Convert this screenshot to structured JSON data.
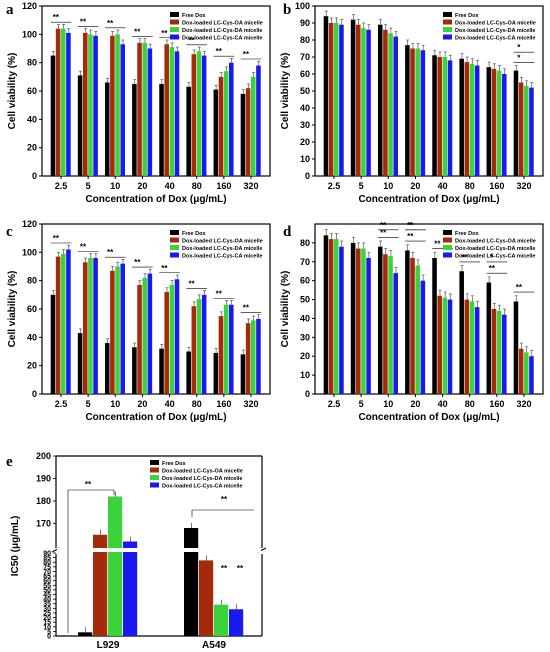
{
  "figure": {
    "background": "#ffffff"
  },
  "series_colors": [
    "#000000",
    "#a52a0a",
    "#3cd23c",
    "#1a1aee"
  ],
  "chart_data": [
    {
      "panel": "a",
      "type": "bar",
      "categories": [
        "2.5",
        "5",
        "10",
        "20",
        "40",
        "80",
        "160",
        "320"
      ],
      "xlabel": "Concentration of Dox (μg/mL)",
      "ylabel": "Cell viability (%)",
      "ylim": [
        0,
        120
      ],
      "yticks": [
        0,
        20,
        40,
        60,
        80,
        100,
        120
      ],
      "legend_position": "top-right",
      "series": [
        {
          "name": "Free Dox",
          "values": [
            85,
            71,
            66,
            65,
            65,
            63,
            61,
            58
          ]
        },
        {
          "name": "Dox-loaded LC-Cys-OA micelle",
          "values": [
            104,
            101,
            99,
            94,
            93,
            86,
            70,
            62
          ]
        },
        {
          "name": "Dox-loaded LC-Cys-DA micelle",
          "values": [
            104,
            100,
            100,
            94,
            91,
            88,
            74,
            70
          ]
        },
        {
          "name": "Dox-loaded LC-Cys-CA micelle",
          "values": [
            101,
            99,
            93,
            90,
            88,
            85,
            80,
            78
          ]
        }
      ],
      "significance": [
        {
          "category": "2.5",
          "label": "**"
        },
        {
          "category": "5",
          "label": "**"
        },
        {
          "category": "10",
          "label": "**"
        },
        {
          "category": "20",
          "label": "**"
        },
        {
          "category": "40",
          "label": "**"
        },
        {
          "category": "80",
          "label": "**"
        },
        {
          "category": "160",
          "label": "**"
        },
        {
          "category": "320",
          "label": "**"
        }
      ]
    },
    {
      "panel": "b",
      "type": "bar",
      "categories": [
        "2.5",
        "5",
        "10",
        "20",
        "40",
        "80",
        "160",
        "320"
      ],
      "xlabel": "Concentration of Dox (μg/mL)",
      "ylabel": "Cell viability (%)",
      "ylim": [
        0,
        100
      ],
      "yticks": [
        0,
        10,
        20,
        30,
        40,
        50,
        60,
        70,
        80,
        90,
        100
      ],
      "legend_position": "top-right",
      "series": [
        {
          "name": "Free Dox",
          "values": [
            94,
            92,
            89,
            77,
            71,
            69,
            64,
            62
          ]
        },
        {
          "name": "Dox-loaded LC-Cys-OA micelle",
          "values": [
            90,
            89,
            86,
            75,
            70,
            67,
            63,
            55
          ]
        },
        {
          "name": "Dox-loaded LC-Cys-DA micelle",
          "values": [
            90,
            87,
            84,
            75,
            70,
            66,
            62,
            53
          ]
        },
        {
          "name": "Dox-loaded LC-Cys-CA micelle",
          "values": [
            89,
            86,
            82,
            74,
            68,
            65,
            60,
            52
          ]
        }
      ],
      "significance": [
        {
          "category": "320",
          "label": "*"
        },
        {
          "category": "320",
          "label": "*"
        }
      ]
    },
    {
      "panel": "c",
      "type": "bar",
      "categories": [
        "2.5",
        "5",
        "10",
        "20",
        "40",
        "80",
        "160",
        "320"
      ],
      "xlabel": "Concentration of Dox (μg/mL)",
      "ylabel": "Cell viability (%)",
      "ylim": [
        0,
        120
      ],
      "yticks": [
        0,
        20,
        40,
        60,
        80,
        100,
        120
      ],
      "legend_position": "top-right",
      "series": [
        {
          "name": "Free Dox",
          "values": [
            70,
            43,
            36,
            33,
            32,
            30,
            29,
            28
          ]
        },
        {
          "name": "Dox-loaded LC-Cys-OA micelle",
          "values": [
            97,
            93,
            87,
            77,
            72,
            62,
            55,
            50
          ]
        },
        {
          "name": "Dox-loaded LC-Cys-DA micelle",
          "values": [
            99,
            96,
            90,
            82,
            77,
            67,
            63,
            52
          ]
        },
        {
          "name": "Dox-loaded LC-Cys-CA micelle",
          "values": [
            102,
            96,
            92,
            85,
            81,
            70,
            63,
            53
          ]
        }
      ],
      "significance": [
        {
          "category": "2.5",
          "label": "**"
        },
        {
          "category": "5",
          "label": "**"
        },
        {
          "category": "10",
          "label": "**"
        },
        {
          "category": "20",
          "label": "**"
        },
        {
          "category": "40",
          "label": "**"
        },
        {
          "category": "80",
          "label": "**"
        },
        {
          "category": "160",
          "label": "**"
        },
        {
          "category": "320",
          "label": "**"
        }
      ]
    },
    {
      "panel": "d",
      "type": "bar",
      "categories": [
        "2.5",
        "5",
        "10",
        "20",
        "40",
        "80",
        "160",
        "320"
      ],
      "xlabel": "Concentration of Dox (μg/mL)",
      "ylabel": "Cell viability (%)",
      "ylim": [
        0,
        90
      ],
      "yticks": [
        0,
        10,
        20,
        30,
        40,
        50,
        60,
        70,
        80
      ],
      "legend_position": "top-right",
      "series": [
        {
          "name": "Free Dox",
          "values": [
            84,
            80,
            78,
            76,
            72,
            65,
            59,
            49
          ]
        },
        {
          "name": "Dox-loaded LC-Cys-OA micelle",
          "values": [
            82,
            77,
            74,
            72,
            52,
            50,
            45,
            24
          ]
        },
        {
          "name": "Dox-loaded LC-Cys-DA micelle",
          "values": [
            82,
            77,
            73,
            68,
            51,
            49,
            44,
            22
          ]
        },
        {
          "name": "Dox-loaded LC-Cys-CA micelle",
          "values": [
            78,
            72,
            64,
            60,
            50,
            46,
            42,
            20
          ]
        }
      ],
      "significance": [
        {
          "category": "10",
          "label": "**"
        },
        {
          "category": "10",
          "label": "**"
        },
        {
          "category": "20",
          "label": "**"
        },
        {
          "category": "20",
          "label": "*"
        },
        {
          "category": "20",
          "label": "**"
        },
        {
          "category": "40",
          "label": "**"
        },
        {
          "category": "80",
          "label": "**"
        },
        {
          "category": "160",
          "label": "**"
        },
        {
          "category": "160",
          "label": "*"
        },
        {
          "category": "320",
          "label": "**"
        }
      ]
    },
    {
      "panel": "e",
      "type": "bar",
      "categories": [
        "L929",
        "A549"
      ],
      "xlabel": "",
      "ylabel": "IC50 (μg/mL)",
      "broken_axis": {
        "lower": [
          0,
          90
        ],
        "upper": [
          160,
          200
        ]
      },
      "yticks_lower": [
        0,
        5,
        10,
        15,
        20,
        25,
        30,
        35,
        40,
        45,
        50,
        55,
        60,
        65,
        70,
        75,
        80,
        85,
        90
      ],
      "yticks_upper": [
        170,
        180,
        190,
        200
      ],
      "legend_position": "top-center",
      "series": [
        {
          "name": "Free Dox",
          "values": [
            4,
            168
          ]
        },
        {
          "name": "Dox-loaded LC-Cys-OA micelle",
          "values": [
            165,
            82
          ]
        },
        {
          "name": "Dox-loaded LC-Cys-DA micelle",
          "values": [
            182,
            34
          ]
        },
        {
          "name": "Dox-loaded LC-Cys-CA micelle",
          "values": [
            162,
            29
          ]
        }
      ],
      "significance": [
        {
          "category": "L929",
          "label": "**"
        },
        {
          "category": "A549",
          "label": "**"
        },
        {
          "category": "A549",
          "label": "**"
        },
        {
          "category": "A549",
          "label": "**"
        }
      ]
    }
  ]
}
